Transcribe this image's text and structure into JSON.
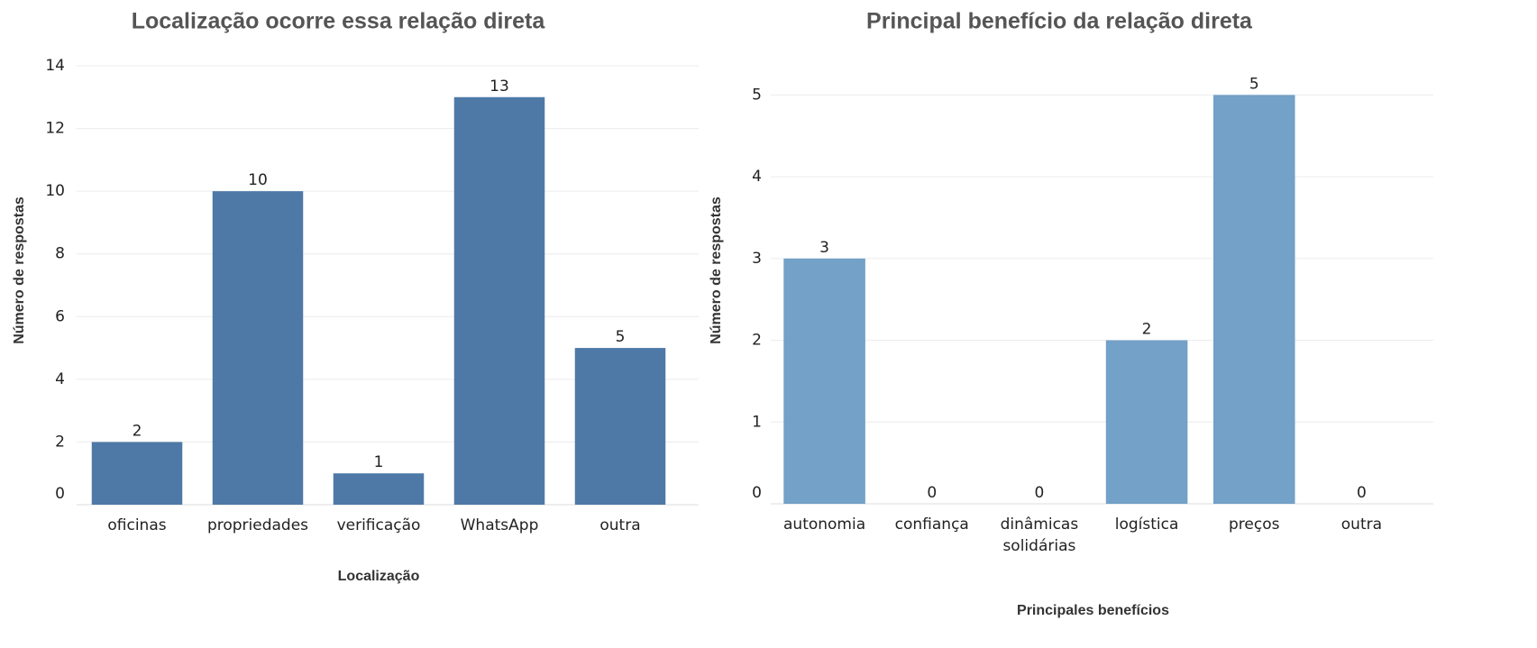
{
  "chart_data": [
    {
      "type": "bar",
      "title": "Localização ocorre essa relação direta",
      "x_label": "Localização",
      "y_label": "Número de respostas",
      "categories": [
        "oficinas",
        "propriedades",
        "verificação",
        "WhatsApp",
        "outra"
      ],
      "values": [
        2,
        10,
        1,
        13,
        5
      ],
      "color": "#4e79a7",
      "ylim": [
        0,
        14
      ],
      "yticks": [
        0,
        2,
        4,
        6,
        8,
        10,
        12,
        14
      ],
      "grid": true
    },
    {
      "type": "bar",
      "title": "Principal benefício da relação direta",
      "x_label": "Principales benefícios",
      "y_label": "Número de respostas",
      "categories": [
        "autonomia",
        "confiança",
        "dinâmicas solidárias",
        "logística",
        "preços",
        "outra"
      ],
      "values": [
        3,
        0,
        0,
        2,
        5,
        0
      ],
      "color": "#73a1c7",
      "ylim": [
        0,
        5.5
      ],
      "yticks": [
        0,
        1,
        2,
        3,
        4,
        5
      ],
      "grid": true
    }
  ]
}
